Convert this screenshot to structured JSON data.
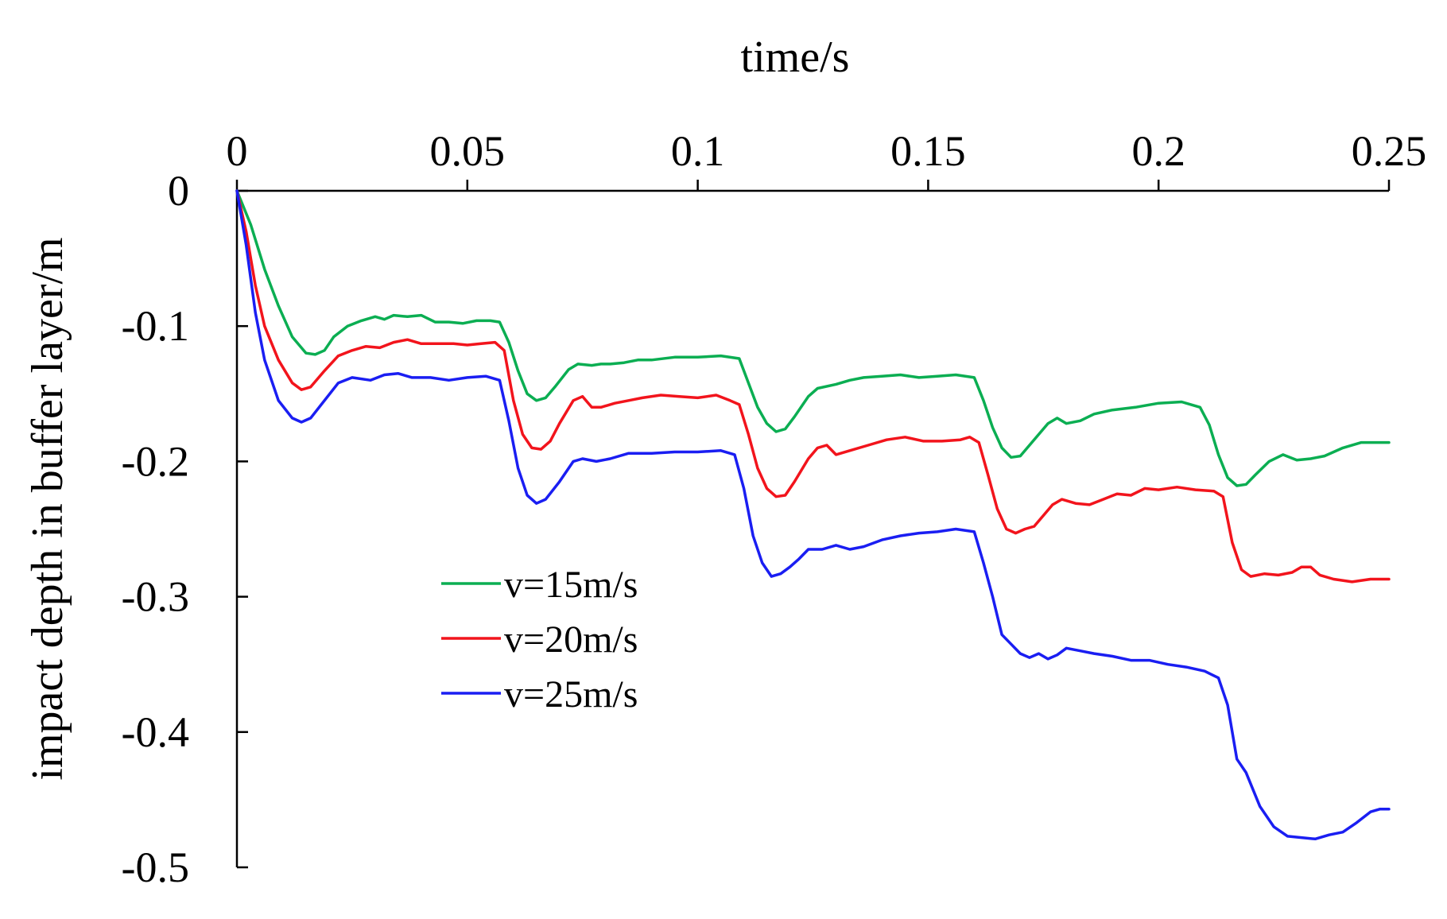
{
  "chart_data": {
    "type": "line",
    "title": "",
    "xlabel": "time/s",
    "ylabel": "impact depth in buffer layer/m",
    "xlim": [
      0,
      0.25
    ],
    "ylim": [
      -0.5,
      0
    ],
    "x_axis_position": "top",
    "grid": false,
    "legend_placement": "center",
    "x_ticks": [
      "0",
      "0.05",
      "0.1",
      "0.15",
      "0.2",
      "0.25"
    ],
    "x_tick_values": [
      0,
      0.05,
      0.1,
      0.15,
      0.2,
      0.25
    ],
    "y_ticks": [
      "0",
      "-0.1",
      "-0.2",
      "-0.3",
      "-0.4",
      "-0.5"
    ],
    "y_tick_values": [
      0,
      -0.1,
      -0.2,
      -0.3,
      -0.4,
      -0.5
    ],
    "series": [
      {
        "name": "v=15m/s",
        "color": "#0bae52",
        "points": [
          [
            0,
            0
          ],
          [
            0.003,
            -0.025
          ],
          [
            0.006,
            -0.058
          ],
          [
            0.009,
            -0.085
          ],
          [
            0.012,
            -0.108
          ],
          [
            0.015,
            -0.12
          ],
          [
            0.017,
            -0.121
          ],
          [
            0.019,
            -0.118
          ],
          [
            0.021,
            -0.108
          ],
          [
            0.024,
            -0.1
          ],
          [
            0.027,
            -0.096
          ],
          [
            0.03,
            -0.093
          ],
          [
            0.032,
            -0.095
          ],
          [
            0.034,
            -0.092
          ],
          [
            0.037,
            -0.093
          ],
          [
            0.04,
            -0.092
          ],
          [
            0.043,
            -0.097
          ],
          [
            0.046,
            -0.097
          ],
          [
            0.049,
            -0.098
          ],
          [
            0.052,
            -0.096
          ],
          [
            0.055,
            -0.096
          ],
          [
            0.057,
            -0.097
          ],
          [
            0.059,
            -0.112
          ],
          [
            0.061,
            -0.133
          ],
          [
            0.063,
            -0.15
          ],
          [
            0.065,
            -0.155
          ],
          [
            0.067,
            -0.153
          ],
          [
            0.069,
            -0.145
          ],
          [
            0.072,
            -0.132
          ],
          [
            0.074,
            -0.128
          ],
          [
            0.077,
            -0.129
          ],
          [
            0.079,
            -0.128
          ],
          [
            0.081,
            -0.128
          ],
          [
            0.084,
            -0.127
          ],
          [
            0.087,
            -0.125
          ],
          [
            0.09,
            -0.125
          ],
          [
            0.095,
            -0.123
          ],
          [
            0.1,
            -0.123
          ],
          [
            0.105,
            -0.122
          ],
          [
            0.109,
            -0.124
          ],
          [
            0.111,
            -0.142
          ],
          [
            0.113,
            -0.16
          ],
          [
            0.115,
            -0.172
          ],
          [
            0.117,
            -0.178
          ],
          [
            0.119,
            -0.176
          ],
          [
            0.121,
            -0.167
          ],
          [
            0.124,
            -0.152
          ],
          [
            0.126,
            -0.146
          ],
          [
            0.13,
            -0.143
          ],
          [
            0.133,
            -0.14
          ],
          [
            0.136,
            -0.138
          ],
          [
            0.14,
            -0.137
          ],
          [
            0.144,
            -0.136
          ],
          [
            0.148,
            -0.138
          ],
          [
            0.152,
            -0.137
          ],
          [
            0.156,
            -0.136
          ],
          [
            0.16,
            -0.138
          ],
          [
            0.162,
            -0.155
          ],
          [
            0.164,
            -0.175
          ],
          [
            0.166,
            -0.19
          ],
          [
            0.168,
            -0.197
          ],
          [
            0.17,
            -0.196
          ],
          [
            0.172,
            -0.188
          ],
          [
            0.174,
            -0.18
          ],
          [
            0.176,
            -0.172
          ],
          [
            0.178,
            -0.168
          ],
          [
            0.18,
            -0.172
          ],
          [
            0.183,
            -0.17
          ],
          [
            0.186,
            -0.165
          ],
          [
            0.19,
            -0.162
          ],
          [
            0.195,
            -0.16
          ],
          [
            0.2,
            -0.157
          ],
          [
            0.205,
            -0.156
          ],
          [
            0.209,
            -0.16
          ],
          [
            0.211,
            -0.173
          ],
          [
            0.213,
            -0.195
          ],
          [
            0.215,
            -0.212
          ],
          [
            0.217,
            -0.218
          ],
          [
            0.219,
            -0.217
          ],
          [
            0.221,
            -0.21
          ],
          [
            0.224,
            -0.2
          ],
          [
            0.227,
            -0.195
          ],
          [
            0.23,
            -0.199
          ],
          [
            0.233,
            -0.198
          ],
          [
            0.236,
            -0.196
          ],
          [
            0.24,
            -0.19
          ],
          [
            0.244,
            -0.186
          ],
          [
            0.25,
            -0.186
          ]
        ]
      },
      {
        "name": "v=20m/s",
        "color": "#f2141c",
        "points": [
          [
            0,
            0
          ],
          [
            0.002,
            -0.03
          ],
          [
            0.004,
            -0.07
          ],
          [
            0.006,
            -0.1
          ],
          [
            0.009,
            -0.125
          ],
          [
            0.012,
            -0.142
          ],
          [
            0.014,
            -0.147
          ],
          [
            0.016,
            -0.145
          ],
          [
            0.019,
            -0.133
          ],
          [
            0.022,
            -0.122
          ],
          [
            0.025,
            -0.118
          ],
          [
            0.028,
            -0.115
          ],
          [
            0.031,
            -0.116
          ],
          [
            0.034,
            -0.112
          ],
          [
            0.037,
            -0.11
          ],
          [
            0.04,
            -0.113
          ],
          [
            0.043,
            -0.113
          ],
          [
            0.047,
            -0.113
          ],
          [
            0.05,
            -0.114
          ],
          [
            0.053,
            -0.113
          ],
          [
            0.056,
            -0.112
          ],
          [
            0.058,
            -0.118
          ],
          [
            0.06,
            -0.155
          ],
          [
            0.062,
            -0.18
          ],
          [
            0.064,
            -0.19
          ],
          [
            0.066,
            -0.191
          ],
          [
            0.068,
            -0.185
          ],
          [
            0.07,
            -0.172
          ],
          [
            0.073,
            -0.155
          ],
          [
            0.075,
            -0.152
          ],
          [
            0.077,
            -0.16
          ],
          [
            0.079,
            -0.16
          ],
          [
            0.082,
            -0.157
          ],
          [
            0.085,
            -0.155
          ],
          [
            0.088,
            -0.153
          ],
          [
            0.092,
            -0.151
          ],
          [
            0.096,
            -0.152
          ],
          [
            0.1,
            -0.153
          ],
          [
            0.104,
            -0.151
          ],
          [
            0.107,
            -0.155
          ],
          [
            0.109,
            -0.158
          ],
          [
            0.111,
            -0.18
          ],
          [
            0.113,
            -0.205
          ],
          [
            0.115,
            -0.22
          ],
          [
            0.117,
            -0.226
          ],
          [
            0.119,
            -0.225
          ],
          [
            0.121,
            -0.215
          ],
          [
            0.124,
            -0.198
          ],
          [
            0.126,
            -0.19
          ],
          [
            0.128,
            -0.188
          ],
          [
            0.13,
            -0.195
          ],
          [
            0.133,
            -0.192
          ],
          [
            0.137,
            -0.188
          ],
          [
            0.141,
            -0.184
          ],
          [
            0.145,
            -0.182
          ],
          [
            0.149,
            -0.185
          ],
          [
            0.153,
            -0.185
          ],
          [
            0.157,
            -0.184
          ],
          [
            0.159,
            -0.182
          ],
          [
            0.161,
            -0.186
          ],
          [
            0.163,
            -0.21
          ],
          [
            0.165,
            -0.235
          ],
          [
            0.167,
            -0.25
          ],
          [
            0.169,
            -0.253
          ],
          [
            0.171,
            -0.25
          ],
          [
            0.173,
            -0.248
          ],
          [
            0.175,
            -0.24
          ],
          [
            0.177,
            -0.232
          ],
          [
            0.179,
            -0.228
          ],
          [
            0.182,
            -0.231
          ],
          [
            0.185,
            -0.232
          ],
          [
            0.188,
            -0.228
          ],
          [
            0.191,
            -0.224
          ],
          [
            0.194,
            -0.225
          ],
          [
            0.197,
            -0.22
          ],
          [
            0.2,
            -0.221
          ],
          [
            0.204,
            -0.219
          ],
          [
            0.208,
            -0.221
          ],
          [
            0.212,
            -0.222
          ],
          [
            0.214,
            -0.226
          ],
          [
            0.216,
            -0.26
          ],
          [
            0.218,
            -0.28
          ],
          [
            0.22,
            -0.285
          ],
          [
            0.223,
            -0.283
          ],
          [
            0.226,
            -0.284
          ],
          [
            0.229,
            -0.282
          ],
          [
            0.231,
            -0.278
          ],
          [
            0.233,
            -0.278
          ],
          [
            0.235,
            -0.284
          ],
          [
            0.238,
            -0.287
          ],
          [
            0.242,
            -0.289
          ],
          [
            0.246,
            -0.287
          ],
          [
            0.25,
            -0.287
          ]
        ]
      },
      {
        "name": "v=25m/s",
        "color": "#1a1ef2",
        "points": [
          [
            0,
            0
          ],
          [
            0.002,
            -0.04
          ],
          [
            0.004,
            -0.09
          ],
          [
            0.006,
            -0.125
          ],
          [
            0.009,
            -0.155
          ],
          [
            0.012,
            -0.168
          ],
          [
            0.014,
            -0.171
          ],
          [
            0.016,
            -0.168
          ],
          [
            0.019,
            -0.155
          ],
          [
            0.022,
            -0.142
          ],
          [
            0.025,
            -0.138
          ],
          [
            0.029,
            -0.14
          ],
          [
            0.032,
            -0.136
          ],
          [
            0.035,
            -0.135
          ],
          [
            0.038,
            -0.138
          ],
          [
            0.042,
            -0.138
          ],
          [
            0.046,
            -0.14
          ],
          [
            0.05,
            -0.138
          ],
          [
            0.054,
            -0.137
          ],
          [
            0.057,
            -0.14
          ],
          [
            0.059,
            -0.17
          ],
          [
            0.061,
            -0.205
          ],
          [
            0.063,
            -0.225
          ],
          [
            0.065,
            -0.231
          ],
          [
            0.067,
            -0.228
          ],
          [
            0.07,
            -0.215
          ],
          [
            0.073,
            -0.2
          ],
          [
            0.075,
            -0.198
          ],
          [
            0.078,
            -0.2
          ],
          [
            0.081,
            -0.198
          ],
          [
            0.085,
            -0.194
          ],
          [
            0.09,
            -0.194
          ],
          [
            0.095,
            -0.193
          ],
          [
            0.1,
            -0.193
          ],
          [
            0.105,
            -0.192
          ],
          [
            0.108,
            -0.195
          ],
          [
            0.11,
            -0.22
          ],
          [
            0.112,
            -0.255
          ],
          [
            0.114,
            -0.275
          ],
          [
            0.116,
            -0.285
          ],
          [
            0.118,
            -0.283
          ],
          [
            0.12,
            -0.278
          ],
          [
            0.122,
            -0.272
          ],
          [
            0.124,
            -0.265
          ],
          [
            0.127,
            -0.265
          ],
          [
            0.13,
            -0.262
          ],
          [
            0.133,
            -0.265
          ],
          [
            0.136,
            -0.263
          ],
          [
            0.14,
            -0.258
          ],
          [
            0.144,
            -0.255
          ],
          [
            0.148,
            -0.253
          ],
          [
            0.152,
            -0.252
          ],
          [
            0.156,
            -0.25
          ],
          [
            0.16,
            -0.252
          ],
          [
            0.162,
            -0.275
          ],
          [
            0.164,
            -0.3
          ],
          [
            0.166,
            -0.328
          ],
          [
            0.168,
            -0.335
          ],
          [
            0.17,
            -0.342
          ],
          [
            0.172,
            -0.345
          ],
          [
            0.174,
            -0.342
          ],
          [
            0.176,
            -0.346
          ],
          [
            0.178,
            -0.343
          ],
          [
            0.18,
            -0.338
          ],
          [
            0.183,
            -0.34
          ],
          [
            0.186,
            -0.342
          ],
          [
            0.19,
            -0.344
          ],
          [
            0.194,
            -0.347
          ],
          [
            0.198,
            -0.347
          ],
          [
            0.202,
            -0.35
          ],
          [
            0.206,
            -0.352
          ],
          [
            0.21,
            -0.355
          ],
          [
            0.213,
            -0.36
          ],
          [
            0.215,
            -0.38
          ],
          [
            0.217,
            -0.42
          ],
          [
            0.219,
            -0.43
          ],
          [
            0.222,
            -0.455
          ],
          [
            0.225,
            -0.47
          ],
          [
            0.228,
            -0.477
          ],
          [
            0.231,
            -0.478
          ],
          [
            0.234,
            -0.479
          ],
          [
            0.237,
            -0.476
          ],
          [
            0.24,
            -0.474
          ],
          [
            0.243,
            -0.467
          ],
          [
            0.246,
            -0.459
          ],
          [
            0.248,
            -0.457
          ],
          [
            0.25,
            -0.457
          ]
        ]
      }
    ]
  }
}
